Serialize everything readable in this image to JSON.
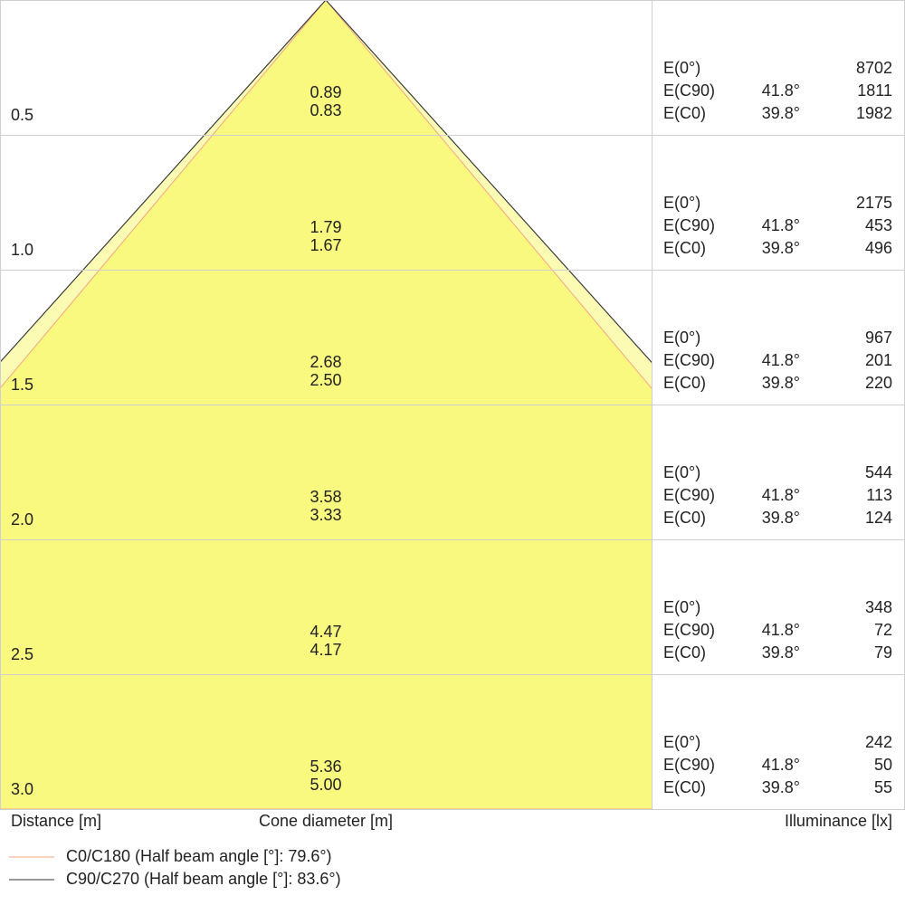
{
  "rows": [
    {
      "distance": "0.5",
      "c90_diameter": "0.89",
      "c0_diameter": "0.83",
      "e0_label": "E(0°)",
      "e0": "8702",
      "c90_label": "E(C90)",
      "c90_angle": "41.8°",
      "c90": "1811",
      "c0_label": "E(C0)",
      "c0_angle": "39.8°",
      "c0": "1982"
    },
    {
      "distance": "1.0",
      "c90_diameter": "1.79",
      "c0_diameter": "1.67",
      "e0_label": "E(0°)",
      "e0": "2175",
      "c90_label": "E(C90)",
      "c90_angle": "41.8°",
      "c90": "453",
      "c0_label": "E(C0)",
      "c0_angle": "39.8°",
      "c0": "496"
    },
    {
      "distance": "1.5",
      "c90_diameter": "2.68",
      "c0_diameter": "2.50",
      "e0_label": "E(0°)",
      "e0": "967",
      "c90_label": "E(C90)",
      "c90_angle": "41.8°",
      "c90": "201",
      "c0_label": "E(C0)",
      "c0_angle": "39.8°",
      "c0": "220"
    },
    {
      "distance": "2.0",
      "c90_diameter": "3.58",
      "c0_diameter": "3.33",
      "e0_label": "E(0°)",
      "e0": "544",
      "c90_label": "E(C90)",
      "c90_angle": "41.8°",
      "c90": "113",
      "c0_label": "E(C0)",
      "c0_angle": "39.8°",
      "c0": "124"
    },
    {
      "distance": "2.5",
      "c90_diameter": "4.47",
      "c0_diameter": "4.17",
      "e0_label": "E(0°)",
      "e0": "348",
      "c90_label": "E(C90)",
      "c90_angle": "41.8°",
      "c90": "72",
      "c0_label": "E(C0)",
      "c0_angle": "39.8°",
      "c0": "79"
    },
    {
      "distance": "3.0",
      "c90_diameter": "5.36",
      "c0_diameter": "5.00",
      "e0_label": "E(0°)",
      "e0": "242",
      "c90_label": "E(C90)",
      "c90_angle": "41.8°",
      "c90": "50",
      "c0_label": "E(C0)",
      "c0_angle": "39.8°",
      "c0": "55"
    }
  ],
  "footer": {
    "distance": "Distance [m]",
    "cone": "Cone diameter [m]",
    "illuminance": "Illuminance [lx]"
  },
  "legend": [
    {
      "label": "C0/C180 (Half beam angle [°]: 79.6°)",
      "color": "#f4a582"
    },
    {
      "label": "C90/C270 (Half beam angle [°]: 83.6°)",
      "color": "#333333"
    }
  ]
}
